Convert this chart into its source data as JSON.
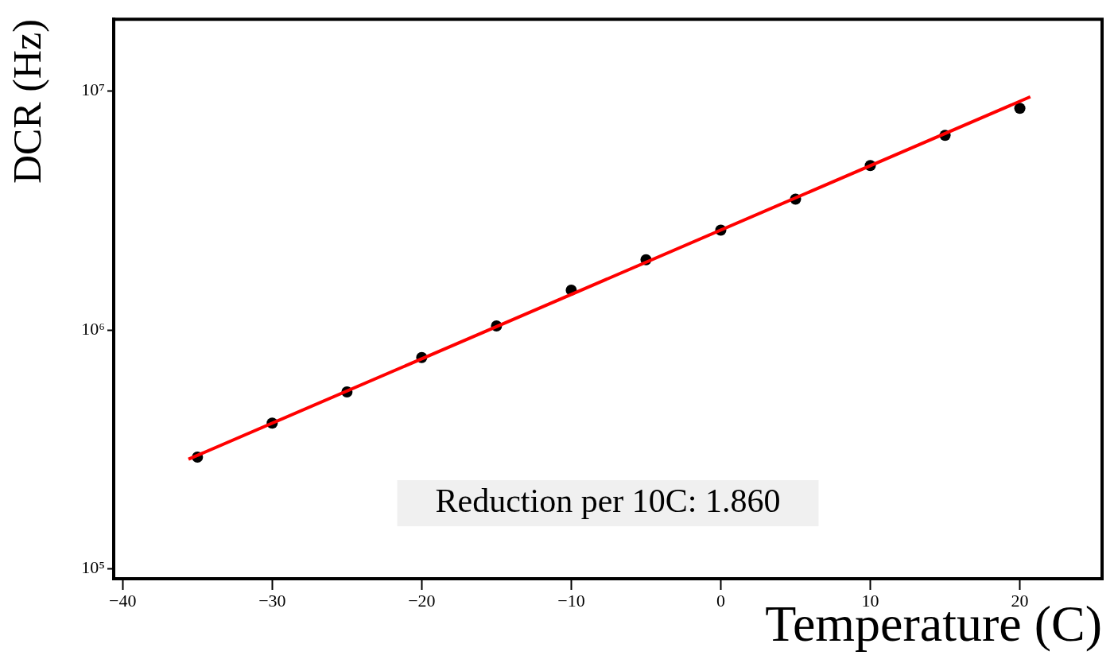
{
  "chart_data": {
    "type": "scatter",
    "xlabel": "Temperature (C)",
    "ylabel": "DCR (Hz)",
    "x": [
      -35,
      -30,
      -25,
      -20,
      -15,
      -10,
      -5,
      0,
      5,
      10,
      15,
      20
    ],
    "series": [
      {
        "type": "scatter",
        "color": "#000000",
        "marker": "circle",
        "values": [
          294000,
          408000,
          551000,
          767000,
          1040000,
          1470000,
          1970000,
          2620000,
          3530000,
          4880000,
          6530000,
          8480000
        ]
      },
      {
        "type": "line",
        "color": "#ff0000",
        "marker": "none",
        "line_style": "solid",
        "x": [
          -35.6,
          20.7
        ],
        "values": [
          288000,
          9470000
        ]
      }
    ],
    "log": "y",
    "xlim": [
      -40.6,
      25.5
    ],
    "xticks": [
      {
        "value": -40,
        "label": "−40"
      },
      {
        "value": -30,
        "label": "−30"
      },
      {
        "value": -20,
        "label": "−20"
      },
      {
        "value": -10,
        "label": "−10"
      },
      0,
      10,
      20
    ],
    "ylim": [
      91000,
      20000000
    ],
    "yticks": [
      {
        "value": 100000,
        "label": "10⁵"
      },
      {
        "value": 1000000,
        "label": "10⁶"
      },
      {
        "value": 10000000,
        "label": "10⁷"
      }
    ],
    "grid": false,
    "legend": false,
    "annotations": [
      "Reduction per 10C: 1.860"
    ]
  }
}
